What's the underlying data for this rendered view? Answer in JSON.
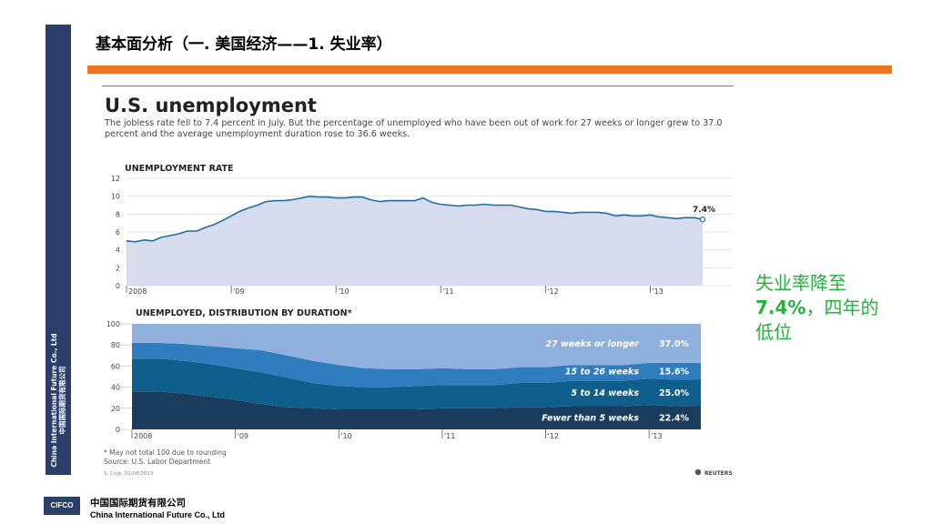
{
  "slide": {
    "title": "基本面分析（一. 美国经济——1. 失业率）",
    "side_company": "China International Future Co., Ltd",
    "side_company_cn": "中国国际期货有限公司",
    "note_line1": "失业率降至",
    "note_value": "7.4%",
    "note_line2": "，四年的",
    "note_line3": "低位",
    "note_color": "#1fb43a",
    "accent_bar_color": "#ee7623",
    "sidebar_color": "#2c3f6b",
    "footer": {
      "logo": "CIFCO",
      "company_cn": "中国国际期货有限公司",
      "company_en": "China International Future Co., Ltd"
    }
  },
  "graphic": {
    "title": "U.S. unemployment",
    "subtitle": "The jobless rate fell to 7.4 percent in July. But the percentage of unemployed who have been out of work for 27 weeks or longer grew to 37.0 percent and the average unemployment duration rose to 36.6 weeks.",
    "footnote": "* May not total 100 due to rounding",
    "source": "Source: U.S. Labor Department",
    "credit": "S. Culp, 02/08/2013",
    "publisher": "REUTERS"
  },
  "chart_data": [
    {
      "type": "area",
      "title": "UNEMPLOYMENT RATE",
      "ylim": [
        0,
        12
      ],
      "yticks": [
        "0",
        "2",
        "4",
        "6",
        "8",
        "10",
        "12"
      ],
      "xtick_labels": [
        "2008",
        "'09",
        "'10",
        "'11",
        "'12",
        "'13"
      ],
      "x_start": 2008.0,
      "x_end": 2013.5,
      "end_label": "7.4%",
      "grid": true,
      "line_color": "#1f6f9a",
      "fill_color": "#d7dbee",
      "x": [
        2008.0,
        2008.08,
        2008.17,
        2008.25,
        2008.33,
        2008.42,
        2008.5,
        2008.58,
        2008.67,
        2008.75,
        2008.83,
        2008.92,
        2009.0,
        2009.08,
        2009.17,
        2009.25,
        2009.33,
        2009.42,
        2009.5,
        2009.58,
        2009.67,
        2009.75,
        2009.83,
        2009.92,
        2010.0,
        2010.08,
        2010.17,
        2010.25,
        2010.33,
        2010.42,
        2010.5,
        2010.58,
        2010.67,
        2010.75,
        2010.83,
        2010.92,
        2011.0,
        2011.08,
        2011.17,
        2011.25,
        2011.33,
        2011.42,
        2011.5,
        2011.58,
        2011.67,
        2011.75,
        2011.83,
        2011.92,
        2012.0,
        2012.08,
        2012.17,
        2012.25,
        2012.33,
        2012.42,
        2012.5,
        2012.58,
        2012.67,
        2012.75,
        2012.83,
        2012.92,
        2013.0,
        2013.08,
        2013.17,
        2013.25,
        2013.33,
        2013.42,
        2013.5
      ],
      "values": [
        5.0,
        4.9,
        5.1,
        5.0,
        5.4,
        5.6,
        5.8,
        6.1,
        6.1,
        6.5,
        6.8,
        7.3,
        7.8,
        8.3,
        8.7,
        9.0,
        9.4,
        9.5,
        9.5,
        9.6,
        9.8,
        10.0,
        9.9,
        9.9,
        9.8,
        9.8,
        9.9,
        9.9,
        9.6,
        9.4,
        9.5,
        9.5,
        9.5,
        9.5,
        9.8,
        9.3,
        9.1,
        9.0,
        8.9,
        9.0,
        9.0,
        9.1,
        9.0,
        9.0,
        9.0,
        8.8,
        8.6,
        8.5,
        8.3,
        8.3,
        8.2,
        8.1,
        8.2,
        8.2,
        8.2,
        8.1,
        7.8,
        7.9,
        7.8,
        7.8,
        7.9,
        7.7,
        7.6,
        7.5,
        7.6,
        7.6,
        7.4
      ]
    },
    {
      "type": "area",
      "title": "UNEMPLOYED, DISTRIBUTION BY DURATION*",
      "ylim": [
        0,
        100
      ],
      "yticks": [
        "0",
        "20",
        "40",
        "60",
        "80",
        "100"
      ],
      "xtick_labels": [
        "2008",
        "'09",
        "'10",
        "'11",
        "'12",
        "'13"
      ],
      "x_start": 2008.0,
      "x_end": 2013.5,
      "x": [
        2008.0,
        2008.25,
        2008.5,
        2008.75,
        2009.0,
        2009.25,
        2009.5,
        2009.75,
        2010.0,
        2010.25,
        2010.5,
        2010.75,
        2011.0,
        2011.25,
        2011.5,
        2011.75,
        2012.0,
        2012.25,
        2012.5,
        2012.75,
        2013.0,
        2013.25,
        2013.5
      ],
      "series": [
        {
          "name": "Fewer than 5 weeks",
          "end_value": "22.4%",
          "color": "#1a3d5e",
          "values": [
            36,
            36,
            34,
            31,
            28,
            24,
            21,
            20,
            19,
            19,
            19,
            19,
            20,
            20,
            20,
            21,
            21,
            22,
            22,
            22,
            23,
            22,
            22.4
          ]
        },
        {
          "name": "5 to 14 weeks",
          "end_value": "25.0%",
          "color": "#0e5f8c",
          "values": [
            31,
            31,
            31,
            31,
            30,
            30,
            28,
            24,
            22,
            21,
            21,
            22,
            22,
            22,
            22,
            23,
            23,
            24,
            24,
            24,
            25,
            25,
            25.0
          ]
        },
        {
          "name": "15 to 26 weeks",
          "end_value": "15.6%",
          "color": "#2f7dbf",
          "values": [
            15,
            15,
            16,
            17,
            19,
            21,
            21,
            21,
            20,
            18,
            17,
            16,
            16,
            15,
            15,
            15,
            15,
            15,
            15,
            15,
            15,
            16,
            15.6
          ]
        },
        {
          "name": "27 weeks or longer",
          "end_value": "37.0%",
          "color": "#8fb0dc",
          "values": [
            18,
            18,
            19,
            21,
            23,
            25,
            30,
            35,
            39,
            42,
            43,
            43,
            42,
            43,
            43,
            41,
            41,
            39,
            39,
            39,
            37,
            37,
            37.0
          ]
        }
      ]
    }
  ]
}
